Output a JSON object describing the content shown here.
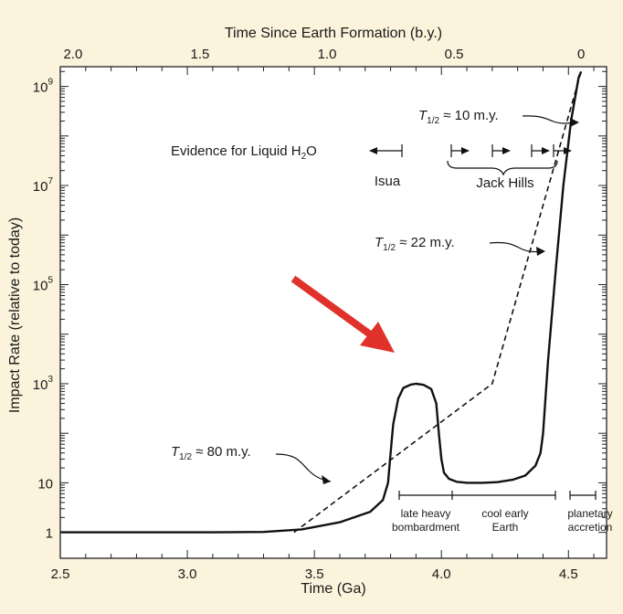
{
  "colors": {
    "background": "#fbf3dc",
    "plot_bg": "#ffffff",
    "arrow": "#e0322a",
    "ink": "#111111"
  },
  "chart_data": {
    "type": "line",
    "xlabel": "Time (Ga)",
    "x2label": "Time Since Earth Formation (b.y.)",
    "ylabel": "Impact Rate (relative to today)",
    "xlim": [
      2.5,
      4.65
    ],
    "ylim": [
      0.3,
      2500000000
    ],
    "yscale": "log",
    "grid": false,
    "x_ticks": [
      2.5,
      3.0,
      3.5,
      4.0,
      4.5
    ],
    "x_tick_labels": [
      "2.5",
      "3.0",
      "3.5",
      "4.0",
      "4.5"
    ],
    "x2_ticks": [
      2.55,
      3.05,
      3.55,
      4.05,
      4.55
    ],
    "x2_tick_labels": [
      "2.0",
      "1.5",
      "1.0",
      "0.5",
      "0"
    ],
    "y_ticks": [
      1,
      10,
      1000,
      100000,
      10000000,
      1000000000
    ],
    "y_tick_labels": [
      {
        "base": "1",
        "exp": ""
      },
      {
        "base": "10",
        "exp": ""
      },
      {
        "base": "10",
        "exp": "3"
      },
      {
        "base": "10",
        "exp": "5"
      },
      {
        "base": "10",
        "exp": "7"
      },
      {
        "base": "10",
        "exp": "9"
      }
    ],
    "series": [
      {
        "style": "solid",
        "x": [
          2.5,
          2.8,
          3.1,
          3.3,
          3.45,
          3.6,
          3.72,
          3.77,
          3.79,
          3.8,
          3.81,
          3.83,
          3.85,
          3.88,
          3.9,
          3.93,
          3.96,
          3.98,
          3.99,
          4.0,
          4.01,
          4.03,
          4.06,
          4.1,
          4.16,
          4.22,
          4.28,
          4.33,
          4.37,
          4.39,
          4.4,
          4.42,
          4.45,
          4.48,
          4.51,
          4.54,
          4.55
        ],
        "y": [
          1,
          1,
          1,
          1.02,
          1.15,
          1.6,
          2.6,
          4.5,
          10,
          40,
          150,
          500,
          820,
          960,
          1000,
          950,
          780,
          400,
          100,
          30,
          16,
          12,
          10.5,
          10,
          10,
          10.3,
          11.5,
          14,
          22,
          40,
          100,
          3000,
          200000,
          10000000,
          200000000,
          1500000000,
          2000000000
        ]
      },
      {
        "style": "dashed",
        "x": [
          3.42,
          4.2,
          4.55
        ],
        "y": [
          1,
          1000,
          2000000000
        ]
      }
    ],
    "annotations": {
      "evidence_label": "Evidence for Liquid H",
      "evidence_sub": "2",
      "evidence_tail": "O",
      "isua": "Isua",
      "jack_hills": "Jack Hills",
      "t80": "≈ 80 m.y.",
      "t22": "≈ 22 m.y.",
      "t10": "≈ 10 m.y.",
      "t_symbol": "T",
      "t_sub": "1/2",
      "phase_lhb_1": "late heavy",
      "phase_lhb_2": "bombardment",
      "phase_cool_1": "cool early",
      "phase_cool_2": "Earth",
      "phase_plan_1": "planetary",
      "phase_plan_2": "accretion"
    }
  }
}
